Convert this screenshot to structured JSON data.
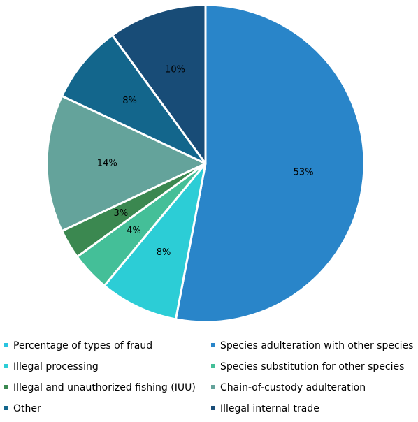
{
  "chart_data": {
    "type": "pie",
    "title": "",
    "legend_position": "bottom",
    "start_angle_deg": 0,
    "direction": "clockwise",
    "slices": [
      {
        "label": "Species adulteration with other species",
        "value": 53,
        "display": "53%",
        "color": "#2985c9"
      },
      {
        "label": "Illegal processing",
        "value": 8,
        "display": "8%",
        "color": "#2ccdd6"
      },
      {
        "label": "Species substitution for other species",
        "value": 4,
        "display": "4%",
        "color": "#44bf98"
      },
      {
        "label": "Illegal and unauthorized fishing (IUU)",
        "value": 3,
        "display": "3%",
        "color": "#3b8850"
      },
      {
        "label": "Chain-of-custody adulteration",
        "value": 14,
        "display": "14%",
        "color": "#64a39b"
      },
      {
        "label": "Other",
        "value": 8,
        "display": "8%",
        "color": "#13668c"
      },
      {
        "label": "Illegal internal trade",
        "value": 10,
        "display": "10%",
        "color": "#184c77"
      }
    ],
    "legend": [
      {
        "label": "Percentage of types of fraud",
        "color": "#2ac4e0"
      },
      {
        "label": "Species adulteration with other species",
        "color": "#2985c9"
      },
      {
        "label": "Illegal processing",
        "color": "#2ccdd6"
      },
      {
        "label": "Species substitution for other species",
        "color": "#44bf98"
      },
      {
        "label": "Illegal and unauthorized fishing (IUU)",
        "color": "#3b8850"
      },
      {
        "label": "Chain-of-custody adulteration",
        "color": "#64a39b"
      },
      {
        "label": "Other",
        "color": "#13668c"
      },
      {
        "label": "Illegal internal trade",
        "color": "#184c77"
      }
    ]
  }
}
